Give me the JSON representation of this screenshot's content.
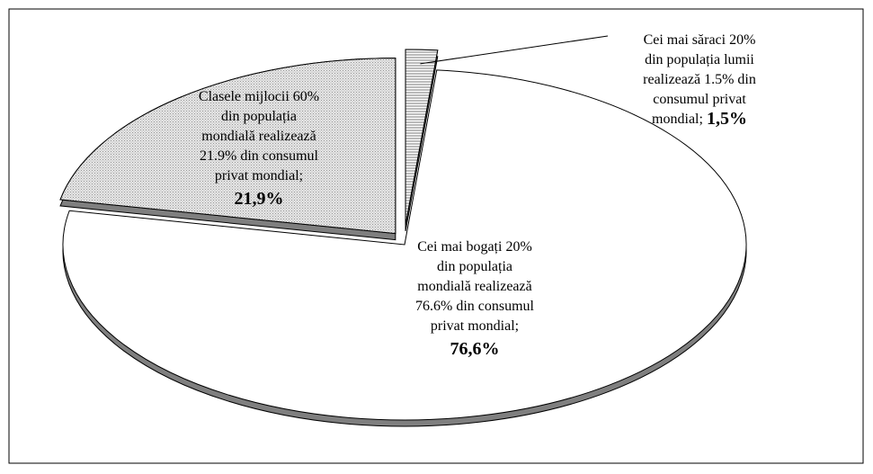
{
  "chart_data": {
    "type": "pie",
    "categories": [
      [
        "Cei mai săraci 20%",
        "din populația lumii",
        "realizează 1.5% din",
        "consumul privat",
        "mondial;"
      ],
      [
        "Cei mai bogați 20%",
        "din populația",
        "mondială realizează",
        "76.6% din consumul",
        "privat mondial;"
      ],
      [
        "Clasele mijlocii 60%",
        "din populația",
        "mondială realizează",
        "21.9% din consumul",
        "privat mondial;"
      ]
    ],
    "values": [
      1.5,
      76.6,
      21.9
    ],
    "value_labels": [
      "1,5%",
      "76,6%",
      "21,9%"
    ],
    "colors": [
      "#c8c8c8",
      "#ffffff",
      "#e0e0e0"
    ]
  }
}
